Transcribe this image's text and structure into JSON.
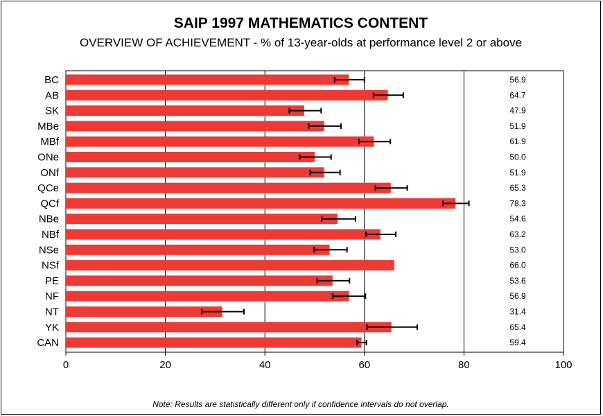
{
  "chart_data": {
    "type": "bar",
    "orientation": "horizontal",
    "title": "SAIP 1997 MATHEMATICS CONTENT",
    "subtitle": "OVERVIEW OF ACHIEVEMENT - % of 13-year-olds at performance level 2 or above",
    "categories": [
      "BC",
      "AB",
      "SK",
      "MBe",
      "MBf",
      "ONe",
      "ONf",
      "QCe",
      "QCf",
      "NBe",
      "NBf",
      "NSe",
      "NSf",
      "PE",
      "NF",
      "NT",
      "YK",
      "CAN"
    ],
    "values": [
      56.9,
      64.7,
      47.9,
      51.9,
      61.9,
      50.0,
      51.9,
      65.3,
      78.3,
      54.6,
      63.2,
      53.0,
      66.0,
      53.6,
      56.9,
      31.4,
      65.4,
      59.4
    ],
    "value_labels": [
      "56.9",
      "64.7",
      "47.9",
      "51.9",
      "61.9",
      "50.0",
      "51.9",
      "65.3",
      "78.3",
      "54.6",
      "63.2",
      "53.0",
      "66.0",
      "53.6",
      "56.9",
      "31.4",
      "65.4",
      "59.4"
    ],
    "ci_low": [
      54.0,
      61.8,
      44.9,
      48.8,
      58.9,
      47.0,
      49.1,
      62.2,
      75.8,
      51.4,
      60.3,
      49.9,
      null,
      50.5,
      53.6,
      27.3,
      60.5,
      58.5
    ],
    "ci_high": [
      60.0,
      67.8,
      51.3,
      55.3,
      65.2,
      53.3,
      55.1,
      68.6,
      81.0,
      58.2,
      66.3,
      56.5,
      null,
      57.0,
      60.2,
      35.8,
      70.6,
      60.4
    ],
    "xlim": [
      0,
      100
    ],
    "x_ticks": [
      0,
      20,
      40,
      60,
      80,
      100
    ],
    "gridlines": [
      20,
      40,
      60,
      80
    ],
    "bar_color": "#ee3a35",
    "note": "Note: Results are statistically different only if confidence intervals do not overlap."
  }
}
